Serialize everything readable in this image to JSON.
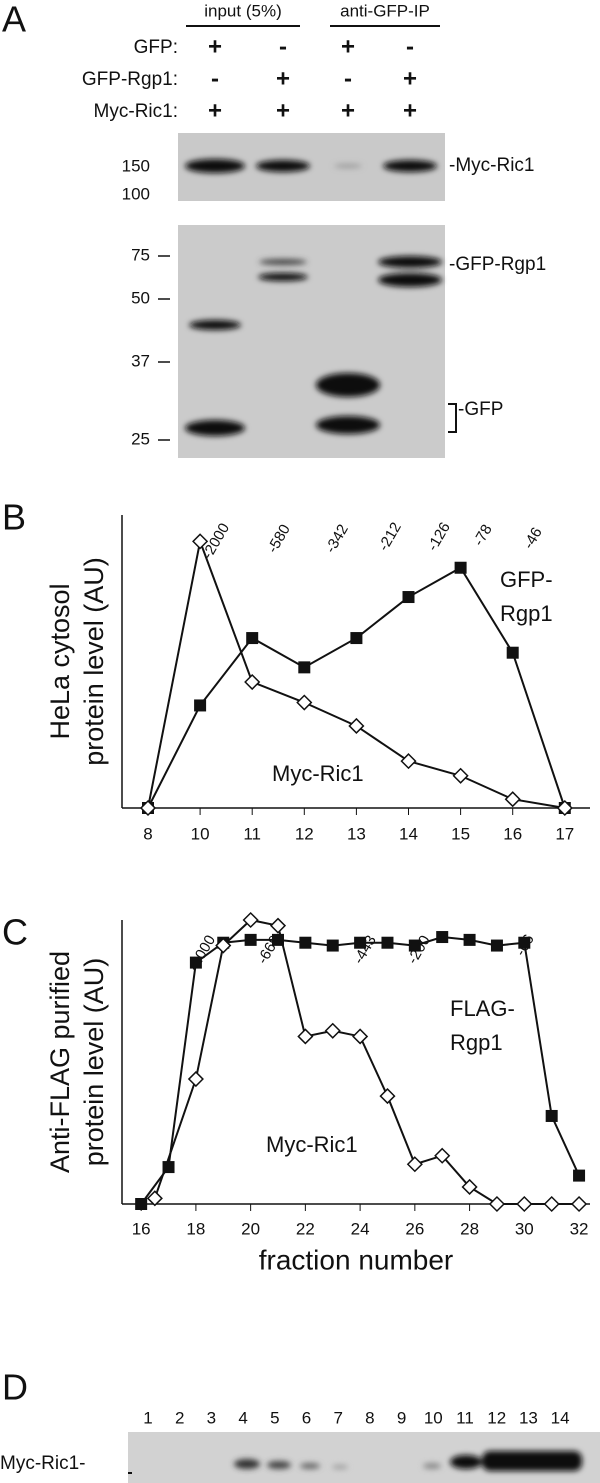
{
  "panel_a": {
    "label": "A",
    "headers": [
      "input (5%)",
      "anti-GFP-IP"
    ],
    "rows": [
      {
        "name": "GFP:",
        "signs": [
          "+",
          "-",
          "+",
          "-"
        ]
      },
      {
        "name": "GFP-Rgp1:",
        "signs": [
          "-",
          "+",
          "-",
          "+"
        ]
      },
      {
        "name": "Myc-Ric1:",
        "signs": [
          "+",
          "+",
          "+",
          "+"
        ]
      }
    ],
    "blot1": {
      "markers": [
        "150",
        "100"
      ],
      "label": "-Myc-Ric1"
    },
    "blot2": {
      "markers": [
        "75",
        "50",
        "37",
        "25"
      ],
      "labels": [
        "-GFP-Rgp1",
        "-GFP"
      ]
    }
  },
  "chart_data": [
    {
      "type": "line",
      "label": "B",
      "ylabel": [
        "HeLa cytosol",
        "protein level (AU)"
      ],
      "categories": [
        "8",
        "10",
        "11",
        "12",
        "13",
        "14",
        "15",
        "16",
        "17"
      ],
      "ylim": [
        0,
        100
      ],
      "annotations": [
        "-2000",
        "-580",
        "-342",
        "-212",
        "-126",
        "-78",
        "-46"
      ],
      "series": [
        {
          "name": "GFP-Rgp1",
          "marker": "square",
          "color": "#111111",
          "values": [
            0,
            35,
            58,
            48,
            58,
            72,
            82,
            53,
            0
          ]
        },
        {
          "name": "Myc-Ric1",
          "marker": "diamond",
          "color": "#111111",
          "values": [
            0,
            91,
            43,
            36,
            28,
            16,
            11,
            3,
            0
          ]
        }
      ]
    },
    {
      "type": "line",
      "label": "C",
      "ylabel": [
        "Anti-FLAG purified",
        "protein level (AU)"
      ],
      "xlabel": "fraction number",
      "xlim": [
        15.3,
        32.4
      ],
      "xticks": [
        16,
        18,
        20,
        22,
        24,
        26,
        28,
        30,
        32
      ],
      "ylim": [
        0,
        100
      ],
      "annotations": [
        "-2000",
        "-669",
        "-443",
        "-200",
        "-66"
      ],
      "series": [
        {
          "name": "FLAG-Rgp1",
          "marker": "square",
          "color": "#111111",
          "x": [
            16,
            17,
            18,
            19,
            20,
            21,
            22,
            23,
            24,
            25,
            26,
            27,
            28,
            29,
            30,
            31,
            32
          ],
          "values": [
            0,
            13,
            85,
            92,
            93,
            93,
            92,
            91,
            92,
            92,
            91,
            94,
            93,
            91,
            92,
            31,
            10
          ]
        },
        {
          "name": "Myc-Ric1",
          "marker": "diamond",
          "color": "#111111",
          "x": [
            16.5,
            18,
            19,
            20,
            21,
            22,
            23,
            24,
            25,
            26,
            27,
            28,
            29,
            30,
            31,
            32
          ],
          "values": [
            2,
            44,
            91,
            100,
            98,
            59,
            61,
            59,
            38,
            14,
            17,
            6,
            0,
            0,
            0,
            0
          ]
        }
      ]
    }
  ],
  "panel_d": {
    "label": "D",
    "lanes": [
      "1",
      "2",
      "3",
      "4",
      "5",
      "6",
      "7",
      "8",
      "9",
      "10",
      "11",
      "12",
      "13",
      "14"
    ],
    "row_label": "Myc-Ric1-"
  }
}
